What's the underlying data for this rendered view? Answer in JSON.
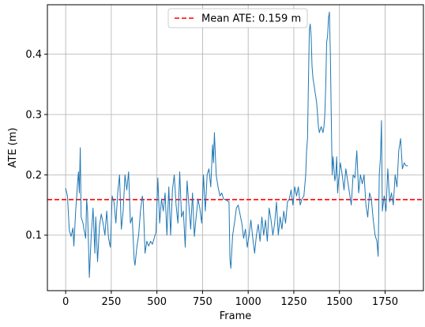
{
  "chart_data": {
    "type": "line",
    "title": "",
    "xlabel": "Frame",
    "ylabel": "ATE (m)",
    "xlim": [
      -100,
      1960
    ],
    "ylim": [
      0.008,
      0.482
    ],
    "xticks": [
      0,
      250,
      500,
      750,
      1000,
      1250,
      1500,
      1750
    ],
    "xtick_labels": [
      "0",
      "250",
      "500",
      "750",
      "1000",
      "1250",
      "1500",
      "1750"
    ],
    "yticks": [
      0.1,
      0.2,
      0.3,
      0.4
    ],
    "ytick_labels": [
      "0.1",
      "0.2",
      "0.3",
      "0.4"
    ],
    "grid": true,
    "legend_position": "top-center",
    "series": [
      {
        "name": "",
        "color": "#1f77b4",
        "points": [
          [
            0,
            0.178
          ],
          [
            10,
            0.165
          ],
          [
            20,
            0.108
          ],
          [
            30,
            0.098
          ],
          [
            40,
            0.112
          ],
          [
            45,
            0.082
          ],
          [
            55,
            0.14
          ],
          [
            65,
            0.185
          ],
          [
            70,
            0.205
          ],
          [
            75,
            0.17
          ],
          [
            80,
            0.245
          ],
          [
            85,
            0.13
          ],
          [
            95,
            0.12
          ],
          [
            100,
            0.11
          ],
          [
            110,
            0.095
          ],
          [
            115,
            0.16
          ],
          [
            120,
            0.14
          ],
          [
            125,
            0.085
          ],
          [
            130,
            0.03
          ],
          [
            140,
            0.1
          ],
          [
            150,
            0.145
          ],
          [
            160,
            0.07
          ],
          [
            165,
            0.13
          ],
          [
            175,
            0.056
          ],
          [
            185,
            0.115
          ],
          [
            195,
            0.135
          ],
          [
            205,
            0.12
          ],
          [
            215,
            0.1
          ],
          [
            225,
            0.14
          ],
          [
            235,
            0.095
          ],
          [
            245,
            0.08
          ],
          [
            255,
            0.165
          ],
          [
            265,
            0.155
          ],
          [
            275,
            0.12
          ],
          [
            285,
            0.17
          ],
          [
            295,
            0.2
          ],
          [
            305,
            0.11
          ],
          [
            315,
            0.14
          ],
          [
            325,
            0.2
          ],
          [
            335,
            0.175
          ],
          [
            345,
            0.205
          ],
          [
            355,
            0.12
          ],
          [
            365,
            0.13
          ],
          [
            375,
            0.06
          ],
          [
            380,
            0.05
          ],
          [
            390,
            0.08
          ],
          [
            400,
            0.1
          ],
          [
            410,
            0.14
          ],
          [
            420,
            0.165
          ],
          [
            425,
            0.155
          ],
          [
            435,
            0.07
          ],
          [
            445,
            0.09
          ],
          [
            455,
            0.082
          ],
          [
            465,
            0.09
          ],
          [
            475,
            0.085
          ],
          [
            485,
            0.095
          ],
          [
            495,
            0.105
          ],
          [
            505,
            0.195
          ],
          [
            515,
            0.12
          ],
          [
            525,
            0.16
          ],
          [
            535,
            0.14
          ],
          [
            545,
            0.17
          ],
          [
            555,
            0.1
          ],
          [
            565,
            0.18
          ],
          [
            575,
            0.1
          ],
          [
            585,
            0.175
          ],
          [
            595,
            0.2
          ],
          [
            605,
            0.15
          ],
          [
            615,
            0.12
          ],
          [
            625,
            0.205
          ],
          [
            635,
            0.13
          ],
          [
            645,
            0.14
          ],
          [
            655,
            0.08
          ],
          [
            665,
            0.19
          ],
          [
            675,
            0.15
          ],
          [
            685,
            0.11
          ],
          [
            695,
            0.17
          ],
          [
            705,
            0.098
          ],
          [
            715,
            0.13
          ],
          [
            725,
            0.16
          ],
          [
            735,
            0.145
          ],
          [
            745,
            0.12
          ],
          [
            755,
            0.2
          ],
          [
            765,
            0.14
          ],
          [
            775,
            0.2
          ],
          [
            785,
            0.21
          ],
          [
            795,
            0.18
          ],
          [
            805,
            0.25
          ],
          [
            810,
            0.22
          ],
          [
            815,
            0.27
          ],
          [
            825,
            0.2
          ],
          [
            835,
            0.18
          ],
          [
            845,
            0.165
          ],
          [
            855,
            0.17
          ],
          [
            865,
            0.16
          ],
          [
            880,
            0.158
          ],
          [
            895,
            0.155
          ],
          [
            900,
            0.06
          ],
          [
            905,
            0.045
          ],
          [
            915,
            0.1
          ],
          [
            925,
            0.12
          ],
          [
            935,
            0.145
          ],
          [
            945,
            0.15
          ],
          [
            955,
            0.135
          ],
          [
            965,
            0.12
          ],
          [
            975,
            0.095
          ],
          [
            985,
            0.11
          ],
          [
            995,
            0.08
          ],
          [
            1005,
            0.1
          ],
          [
            1015,
            0.125
          ],
          [
            1025,
            0.095
          ],
          [
            1035,
            0.07
          ],
          [
            1045,
            0.1
          ],
          [
            1055,
            0.118
          ],
          [
            1065,
            0.09
          ],
          [
            1075,
            0.13
          ],
          [
            1085,
            0.1
          ],
          [
            1095,
            0.125
          ],
          [
            1105,
            0.09
          ],
          [
            1115,
            0.145
          ],
          [
            1125,
            0.125
          ],
          [
            1135,
            0.1
          ],
          [
            1145,
            0.12
          ],
          [
            1155,
            0.155
          ],
          [
            1165,
            0.1
          ],
          [
            1175,
            0.13
          ],
          [
            1185,
            0.11
          ],
          [
            1195,
            0.14
          ],
          [
            1205,
            0.12
          ],
          [
            1215,
            0.155
          ],
          [
            1225,
            0.16
          ],
          [
            1235,
            0.175
          ],
          [
            1245,
            0.15
          ],
          [
            1255,
            0.18
          ],
          [
            1265,
            0.165
          ],
          [
            1275,
            0.18
          ],
          [
            1285,
            0.15
          ],
          [
            1295,
            0.16
          ],
          [
            1305,
            0.165
          ],
          [
            1315,
            0.2
          ],
          [
            1320,
            0.24
          ],
          [
            1325,
            0.26
          ],
          [
            1330,
            0.35
          ],
          [
            1335,
            0.44
          ],
          [
            1340,
            0.45
          ],
          [
            1345,
            0.43
          ],
          [
            1350,
            0.38
          ],
          [
            1355,
            0.36
          ],
          [
            1360,
            0.35
          ],
          [
            1365,
            0.34
          ],
          [
            1370,
            0.33
          ],
          [
            1375,
            0.32
          ],
          [
            1380,
            0.3
          ],
          [
            1385,
            0.28
          ],
          [
            1390,
            0.27
          ],
          [
            1395,
            0.275
          ],
          [
            1400,
            0.28
          ],
          [
            1405,
            0.275
          ],
          [
            1410,
            0.27
          ],
          [
            1415,
            0.28
          ],
          [
            1420,
            0.3
          ],
          [
            1425,
            0.35
          ],
          [
            1430,
            0.42
          ],
          [
            1435,
            0.43
          ],
          [
            1440,
            0.46
          ],
          [
            1445,
            0.47
          ],
          [
            1450,
            0.4
          ],
          [
            1455,
            0.3
          ],
          [
            1460,
            0.2
          ],
          [
            1465,
            0.23
          ],
          [
            1470,
            0.21
          ],
          [
            1475,
            0.19
          ],
          [
            1480,
            0.2
          ],
          [
            1485,
            0.23
          ],
          [
            1490,
            0.17
          ],
          [
            1495,
            0.19
          ],
          [
            1505,
            0.22
          ],
          [
            1515,
            0.2
          ],
          [
            1525,
            0.175
          ],
          [
            1535,
            0.21
          ],
          [
            1545,
            0.19
          ],
          [
            1555,
            0.17
          ],
          [
            1565,
            0.15
          ],
          [
            1575,
            0.2
          ],
          [
            1585,
            0.195
          ],
          [
            1595,
            0.24
          ],
          [
            1605,
            0.17
          ],
          [
            1615,
            0.2
          ],
          [
            1625,
            0.185
          ],
          [
            1635,
            0.2
          ],
          [
            1645,
            0.15
          ],
          [
            1655,
            0.13
          ],
          [
            1665,
            0.17
          ],
          [
            1675,
            0.16
          ],
          [
            1685,
            0.125
          ],
          [
            1695,
            0.1
          ],
          [
            1705,
            0.09
          ],
          [
            1712,
            0.065
          ],
          [
            1718,
            0.2
          ],
          [
            1725,
            0.23
          ],
          [
            1730,
            0.29
          ],
          [
            1735,
            0.14
          ],
          [
            1745,
            0.165
          ],
          [
            1755,
            0.14
          ],
          [
            1765,
            0.21
          ],
          [
            1775,
            0.155
          ],
          [
            1785,
            0.17
          ],
          [
            1795,
            0.15
          ],
          [
            1805,
            0.2
          ],
          [
            1815,
            0.18
          ],
          [
            1825,
            0.24
          ],
          [
            1835,
            0.26
          ],
          [
            1845,
            0.21
          ],
          [
            1855,
            0.22
          ],
          [
            1865,
            0.215
          ],
          [
            1875,
            0.215
          ]
        ]
      }
    ],
    "reference_lines": [
      {
        "label": "Mean ATE: 0.159 m",
        "y": 0.159,
        "color": "#ff0000",
        "style": "dashed"
      }
    ],
    "legend": [
      {
        "label": "Mean ATE: 0.159 m",
        "color": "#ff0000",
        "style": "dashed"
      }
    ]
  }
}
